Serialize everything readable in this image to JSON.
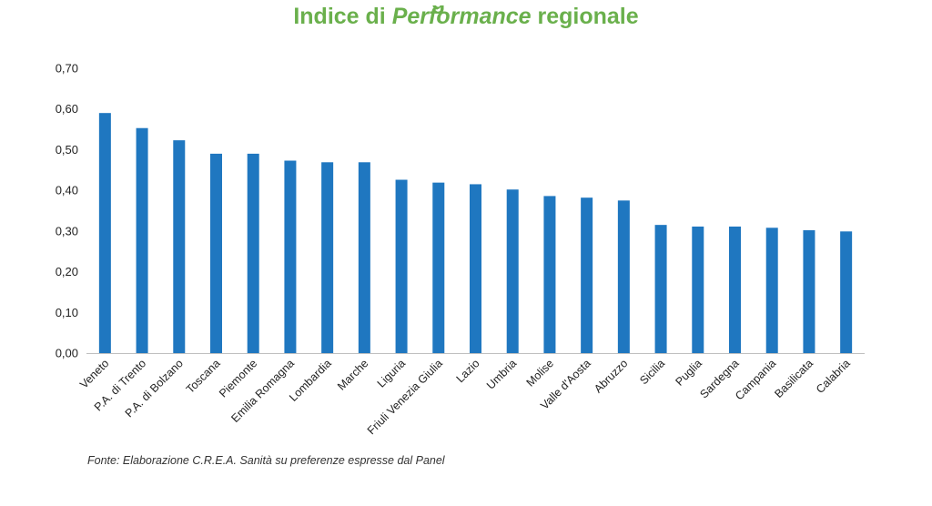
{
  "header": {
    "partial_text": "g",
    "title_prefix": "Indice di ",
    "title_italic": "Performance",
    "title_suffix": " regionale"
  },
  "source_note": "Fonte: Elaborazione C.R.E.A. Sanità su preferenze espresse dal Panel",
  "colors": {
    "title": "#6ab04c",
    "bar": "#1f77c0"
  },
  "chart_data": {
    "type": "bar",
    "title": "Indice di Performance regionale",
    "xlabel": "",
    "ylabel": "",
    "ylim": [
      0,
      0.7
    ],
    "y_ticks": [
      "0,00",
      "0,10",
      "0,20",
      "0,30",
      "0,40",
      "0,50",
      "0,60",
      "0,70"
    ],
    "grid": false,
    "categories": [
      "Veneto",
      "P.A. di Trento",
      "P.A. di Bolzano",
      "Toscana",
      "Piemonte",
      "Emilia Romagna",
      "Lombardia",
      "Marche",
      "Liguria",
      "Friuli Venezia Giulia",
      "Lazio",
      "Umbria",
      "Molise",
      "Valle d'Aosta",
      "Abruzzo",
      "Sicilia",
      "Puglia",
      "Sardegna",
      "Campania",
      "Basilicata",
      "Calabria"
    ],
    "values": [
      0.59,
      0.553,
      0.523,
      0.49,
      0.49,
      0.473,
      0.469,
      0.469,
      0.426,
      0.419,
      0.415,
      0.402,
      0.386,
      0.382,
      0.375,
      0.315,
      0.311,
      0.311,
      0.308,
      0.302,
      0.299
    ]
  }
}
